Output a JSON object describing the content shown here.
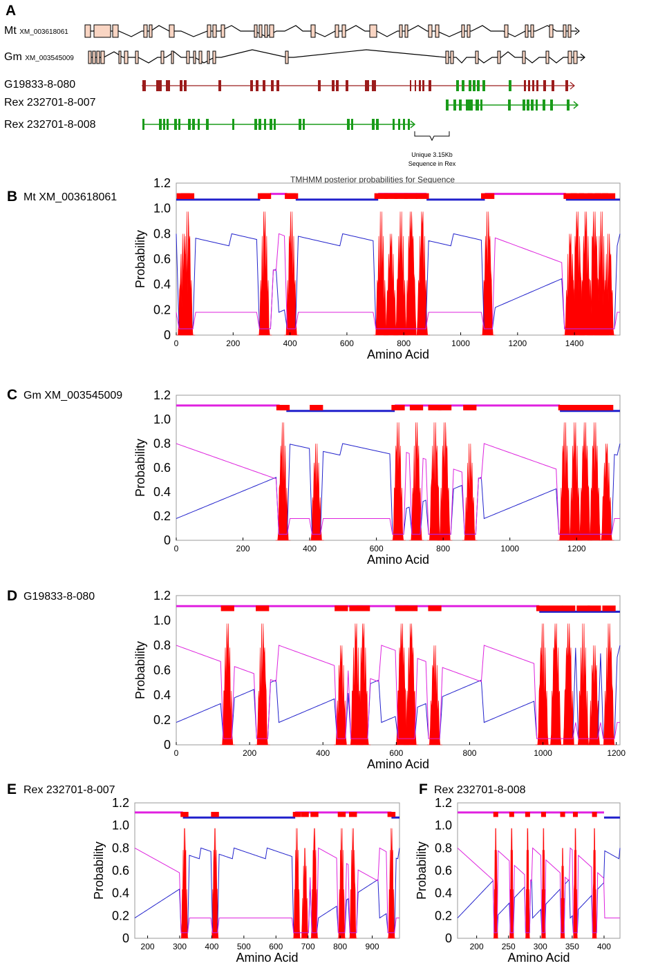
{
  "panel_a": {
    "letter": "A",
    "genes": [
      {
        "name": "Mt",
        "acc": "XM_003618061"
      },
      {
        "name": "Gm",
        "acc": "XM_003545009"
      },
      {
        "name": "G19833-8-080",
        "acc": ""
      },
      {
        "name": "Rex 232701-8-007",
        "acc": ""
      },
      {
        "name": "Rex 232701-8-008",
        "acc": ""
      }
    ],
    "annotation_line1": "Unique 3.15Kb",
    "annotation_line2": "Sequence in Rex",
    "colors": {
      "exon_fill": "#f9d5c3",
      "dark_red": "#9b1c1c",
      "green": "#1a9b1a"
    }
  },
  "chart_data": [
    {
      "type": "line",
      "panel": "B",
      "label": "Mt XM_003618061",
      "title": "TMHMM posterior probabilities for Sequence",
      "xlabel": "Amino Acid",
      "ylabel": "Probability",
      "xlim": [
        0,
        1560
      ],
      "ylim": [
        0,
        1.2
      ],
      "xticks": [
        0,
        200,
        400,
        600,
        800,
        1000,
        1200,
        1400
      ],
      "yticks": [
        "0",
        "0.2",
        "0.4",
        "0.6",
        "0.8",
        "1.0",
        "1.2"
      ],
      "tm_peaks": [
        25,
        40,
        310,
        405,
        720,
        755,
        790,
        825,
        865,
        1095,
        1385,
        1410,
        1440,
        1470,
        1495,
        1520
      ],
      "topology_segments": [
        {
          "from": 0,
          "to": 295,
          "state": "inside"
        },
        {
          "from": 295,
          "to": 330,
          "state": "tm"
        },
        {
          "from": 330,
          "to": 390,
          "state": "outside"
        },
        {
          "from": 390,
          "to": 420,
          "state": "tm"
        },
        {
          "from": 420,
          "to": 710,
          "state": "inside"
        },
        {
          "from": 710,
          "to": 880,
          "state": "outside"
        },
        {
          "from": 880,
          "to": 1085,
          "state": "inside"
        },
        {
          "from": 1085,
          "to": 1370,
          "state": "outside"
        },
        {
          "from": 1370,
          "to": 1560,
          "state": "inside"
        }
      ],
      "series": [
        {
          "name": "transmembrane",
          "color": "#ff0000"
        },
        {
          "name": "inside",
          "color": "#2222cc"
        },
        {
          "name": "outside",
          "color": "#dd22dd"
        }
      ]
    },
    {
      "type": "line",
      "panel": "C",
      "label": "Gm XM_003545009",
      "title": "",
      "xlabel": "Amino Acid",
      "ylabel": "Probability",
      "xlim": [
        0,
        1330
      ],
      "ylim": [
        0,
        1.2
      ],
      "xticks": [
        0,
        200,
        400,
        600,
        800,
        1000,
        1200
      ],
      "yticks": [
        "0",
        "0.2",
        "0.4",
        "0.6",
        "0.8",
        "1.0",
        "1.2"
      ],
      "tm_peaks": [
        320,
        420,
        665,
        720,
        775,
        805,
        880,
        1165,
        1195,
        1225,
        1255,
        1290
      ],
      "topology_segments": [
        {
          "from": 0,
          "to": 310,
          "state": "outside"
        },
        {
          "from": 310,
          "to": 330,
          "state": "tm"
        },
        {
          "from": 330,
          "to": 655,
          "state": "inside"
        },
        {
          "from": 655,
          "to": 890,
          "state": "outside"
        },
        {
          "from": 890,
          "to": 1150,
          "state": "outside"
        },
        {
          "from": 1150,
          "to": 1330,
          "state": "inside"
        }
      ],
      "series": [
        {
          "name": "transmembrane",
          "color": "#ff0000"
        },
        {
          "name": "inside",
          "color": "#2222cc"
        },
        {
          "name": "outside",
          "color": "#dd22dd"
        }
      ]
    },
    {
      "type": "line",
      "panel": "D",
      "label": "G19833-8-080",
      "title": "",
      "xlabel": "Amino Acid",
      "ylabel": "Probability",
      "xlim": [
        0,
        1210
      ],
      "ylim": [
        0,
        1.2
      ],
      "xticks": [
        0,
        200,
        400,
        600,
        800,
        1000,
        1200
      ],
      "yticks": [
        "0",
        "0.2",
        "0.4",
        "0.6",
        "0.8",
        "1.0",
        "1.2"
      ],
      "tm_peaks": [
        140,
        235,
        450,
        490,
        510,
        615,
        640,
        705,
        1000,
        1035,
        1070,
        1110,
        1140,
        1180
      ],
      "topology_segments": [
        {
          "from": 0,
          "to": 130,
          "state": "outside"
        },
        {
          "from": 130,
          "to": 440,
          "state": "outside"
        },
        {
          "from": 440,
          "to": 600,
          "state": "outside"
        },
        {
          "from": 600,
          "to": 990,
          "state": "outside"
        },
        {
          "from": 990,
          "to": 1210,
          "state": "inside"
        }
      ],
      "series": [
        {
          "name": "transmembrane",
          "color": "#ff0000"
        },
        {
          "name": "inside",
          "color": "#2222cc"
        },
        {
          "name": "outside",
          "color": "#dd22dd"
        }
      ]
    },
    {
      "type": "line",
      "panel": "E",
      "label": "Rex 232701-8-007",
      "title": "",
      "xlabel": "Amino Acid",
      "ylabel": "Probability",
      "xlim": [
        160,
        985
      ],
      "ylim": [
        0,
        1.2
      ],
      "xticks": [
        200,
        300,
        400,
        500,
        600,
        700,
        800,
        900
      ],
      "yticks": [
        "0",
        "0.2",
        "0.4",
        "0.6",
        "0.8",
        "1.0",
        "1.2"
      ],
      "tm_peaks": [
        315,
        410,
        665,
        690,
        720,
        805,
        840,
        960
      ],
      "topology_segments": [
        {
          "from": 160,
          "to": 310,
          "state": "outside"
        },
        {
          "from": 310,
          "to": 660,
          "state": "inside"
        },
        {
          "from": 660,
          "to": 960,
          "state": "outside"
        },
        {
          "from": 960,
          "to": 985,
          "state": "inside"
        }
      ],
      "series": [
        {
          "name": "transmembrane",
          "color": "#ff0000"
        },
        {
          "name": "inside",
          "color": "#2222cc"
        },
        {
          "name": "outside",
          "color": "#dd22dd"
        }
      ]
    },
    {
      "type": "line",
      "panel": "F",
      "label": "Rex 232701-8-008",
      "title": "",
      "xlabel": "Amino Acid",
      "ylabel": "Probability",
      "xlim": [
        170,
        425
      ],
      "ylim": [
        0,
        1.2
      ],
      "xticks": [
        200,
        250,
        300,
        350,
        400
      ],
      "yticks": [
        "0",
        "0.2",
        "0.4",
        "0.6",
        "0.8",
        "1.0",
        "1.2"
      ],
      "tm_peaks": [
        230,
        255,
        280,
        305,
        335,
        355,
        385
      ],
      "topology_segments": [
        {
          "from": 170,
          "to": 240,
          "state": "outside"
        },
        {
          "from": 240,
          "to": 400,
          "state": "outside"
        },
        {
          "from": 400,
          "to": 425,
          "state": "inside"
        }
      ],
      "series": [
        {
          "name": "transmembrane",
          "color": "#ff0000"
        },
        {
          "name": "inside",
          "color": "#2222cc"
        },
        {
          "name": "outside",
          "color": "#dd22dd"
        }
      ]
    }
  ]
}
